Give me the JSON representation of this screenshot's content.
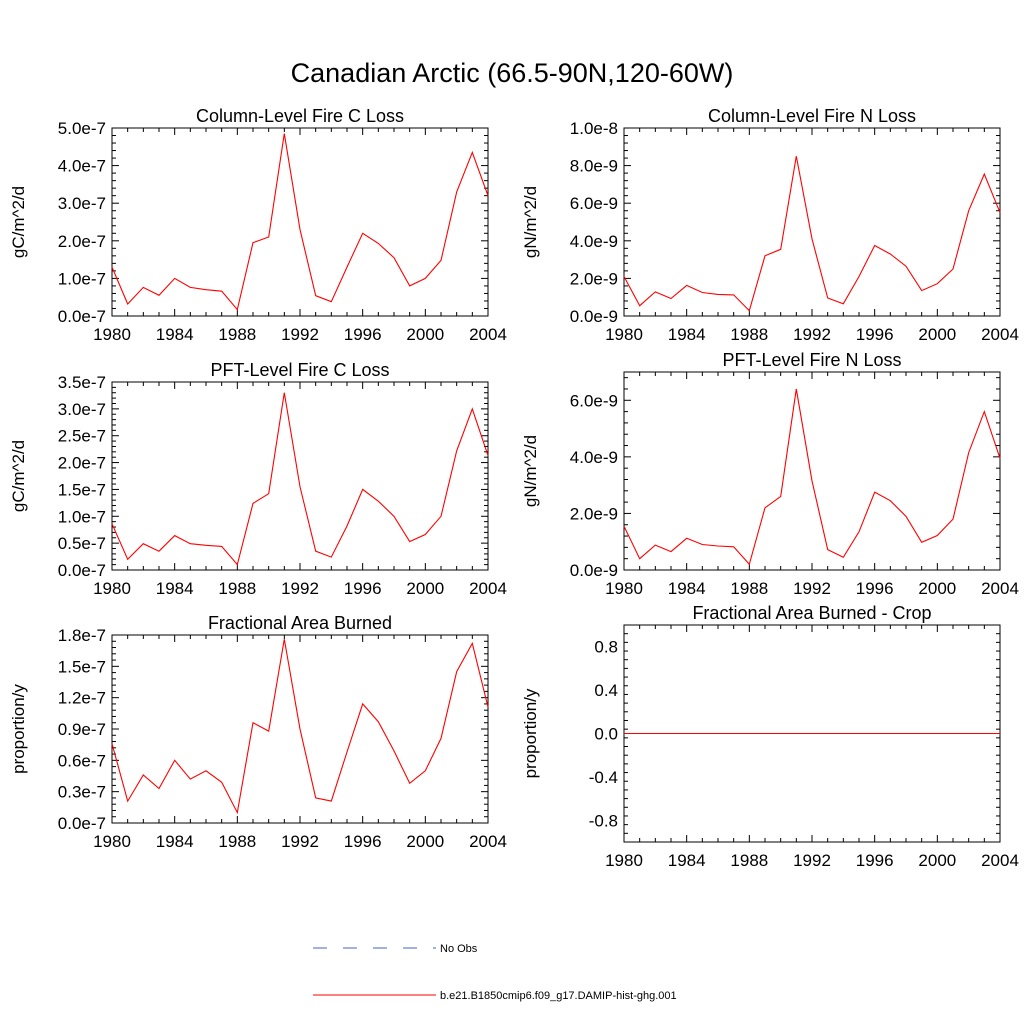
{
  "figure": {
    "title": "Canadian Arctic (66.5-90N,120-60W)"
  },
  "legend": [
    {
      "label": "No Obs",
      "color": "#4a5fc9",
      "dash": true
    },
    {
      "label": "b.e21.B1850cmip6.f09_g17.DAMIP-hist-ghg.001",
      "color": "#ff0000",
      "dash": false
    }
  ],
  "chart_data": [
    {
      "type": "line",
      "title": "Column-Level Fire C Loss",
      "ylabel": "gC/m^2/d",
      "xlim": [
        1980,
        2004
      ],
      "ylim": [
        0,
        5e-07
      ],
      "xticks": [
        1980,
        1984,
        1988,
        1992,
        1996,
        2000,
        2004
      ],
      "yticks": [
        0,
        1e-07,
        2e-07,
        3e-07,
        4e-07,
        5e-07
      ],
      "ytick_labels": [
        "0.0e-7",
        "1.0e-7",
        "2.0e-7",
        "3.0e-7",
        "4.0e-7",
        "5.0e-7"
      ],
      "x": [
        1980,
        1981,
        1982,
        1983,
        1984,
        1985,
        1986,
        1987,
        1988,
        1989,
        1990,
        1991,
        1992,
        1993,
        1994,
        1995,
        1996,
        1997,
        1998,
        1999,
        2000,
        2001,
        2002,
        2003,
        2004
      ],
      "series": [
        {
          "color": "#ff0000",
          "values": [
            1.3e-07,
            3.2e-08,
            7.6e-08,
            5.5e-08,
            1e-07,
            7.6e-08,
            7e-08,
            6.6e-08,
            1.7e-08,
            1.95e-07,
            2.1e-07,
            4.85e-07,
            2.3e-07,
            5.4e-08,
            3.8e-08,
            1.3e-07,
            2.2e-07,
            1.93e-07,
            1.55e-07,
            8e-08,
            1e-07,
            1.48e-07,
            3.3e-07,
            4.35e-07,
            3.2e-07
          ]
        }
      ]
    },
    {
      "type": "line",
      "title": "Column-Level Fire N Loss",
      "ylabel": "gN/m^2/d",
      "xlim": [
        1980,
        2004
      ],
      "ylim": [
        0,
        1e-08
      ],
      "xticks": [
        1980,
        1984,
        1988,
        1992,
        1996,
        2000,
        2004
      ],
      "yticks": [
        0,
        2e-09,
        4e-09,
        6e-09,
        8e-09,
        1e-08
      ],
      "ytick_labels": [
        "0.0e-9",
        "2.0e-9",
        "4.0e-9",
        "6.0e-9",
        "8.0e-9",
        "1.0e-8"
      ],
      "x": [
        1980,
        1981,
        1982,
        1983,
        1984,
        1985,
        1986,
        1987,
        1988,
        1989,
        1990,
        1991,
        1992,
        1993,
        1994,
        1995,
        1996,
        1997,
        1998,
        1999,
        2000,
        2001,
        2002,
        2003,
        2004
      ],
      "series": [
        {
          "color": "#ff0000",
          "values": [
            2.1e-09,
            5.5e-10,
            1.28e-09,
            9.3e-10,
            1.63e-09,
            1.25e-09,
            1.15e-09,
            1.12e-09,
            2.8e-10,
            3.2e-09,
            3.55e-09,
            8.5e-09,
            4.1e-09,
            9.6e-10,
            6.5e-10,
            2.1e-09,
            3.75e-09,
            3.3e-09,
            2.65e-09,
            1.35e-09,
            1.72e-09,
            2.5e-09,
            5.6e-09,
            7.55e-09,
            5.5e-09
          ]
        }
      ]
    },
    {
      "type": "line",
      "title": "PFT-Level Fire C Loss",
      "ylabel": "gC/m^2/d",
      "xlim": [
        1980,
        2004
      ],
      "ylim": [
        0,
        3.5e-07
      ],
      "xticks": [
        1980,
        1984,
        1988,
        1992,
        1996,
        2000,
        2004
      ],
      "yticks": [
        0,
        5e-08,
        1e-07,
        1.5e-07,
        2e-07,
        2.5e-07,
        3e-07,
        3.5e-07
      ],
      "ytick_labels": [
        "0.0e-7",
        "0.5e-7",
        "1.0e-7",
        "1.5e-7",
        "2.0e-7",
        "2.5e-7",
        "3.0e-7",
        "3.5e-7"
      ],
      "x": [
        1980,
        1981,
        1982,
        1983,
        1984,
        1985,
        1986,
        1987,
        1988,
        1989,
        1990,
        1991,
        1992,
        1993,
        1994,
        1995,
        1996,
        1997,
        1998,
        1999,
        2000,
        2001,
        2002,
        2003,
        2004
      ],
      "series": [
        {
          "color": "#ff0000",
          "values": [
            8.6e-08,
            2e-08,
            4.9e-08,
            3.5e-08,
            6.4e-08,
            4.9e-08,
            4.6e-08,
            4.4e-08,
            1e-08,
            1.24e-07,
            1.42e-07,
            3.3e-07,
            1.55e-07,
            3.5e-08,
            2.4e-08,
            8.2e-08,
            1.5e-07,
            1.28e-07,
            1e-07,
            5.3e-08,
            6.6e-08,
            1e-07,
            2.22e-07,
            3e-07,
            2.13e-07
          ]
        }
      ]
    },
    {
      "type": "line",
      "title": "PFT-Level Fire N Loss",
      "ylabel": "gN/m^2/d",
      "xlim": [
        1980,
        2004
      ],
      "ylim": [
        0,
        7e-09
      ],
      "xticks": [
        1980,
        1984,
        1988,
        1992,
        1996,
        2000,
        2004
      ],
      "yticks": [
        0,
        2e-09,
        4e-09,
        6e-09
      ],
      "ytick_labels": [
        "0.0e-9",
        "2.0e-9",
        "4.0e-9",
        "6.0e-9"
      ],
      "x": [
        1980,
        1981,
        1982,
        1983,
        1984,
        1985,
        1986,
        1987,
        1988,
        1989,
        1990,
        1991,
        1992,
        1993,
        1994,
        1995,
        1996,
        1997,
        1998,
        1999,
        2000,
        2001,
        2002,
        2003,
        2004
      ],
      "series": [
        {
          "color": "#ff0000",
          "values": [
            1.55e-09,
            4e-10,
            8.8e-10,
            6.5e-10,
            1.12e-09,
            9e-10,
            8.5e-10,
            8.2e-10,
            2e-10,
            2.2e-09,
            2.6e-09,
            6.4e-09,
            3.15e-09,
            7.2e-10,
            4.5e-10,
            1.35e-09,
            2.75e-09,
            2.45e-09,
            1.9e-09,
            9.8e-10,
            1.22e-09,
            1.8e-09,
            4.15e-09,
            5.6e-09,
            3.95e-09
          ]
        }
      ]
    },
    {
      "type": "line",
      "title": "Fractional Area Burned",
      "ylabel": "proportion/y",
      "xlim": [
        1980,
        2004
      ],
      "ylim": [
        0,
        1.8e-07
      ],
      "xticks": [
        1980,
        1984,
        1988,
        1992,
        1996,
        2000,
        2004
      ],
      "yticks": [
        0,
        3e-08,
        6e-08,
        9e-08,
        1.2e-07,
        1.5e-07,
        1.8e-07
      ],
      "ytick_labels": [
        "0.0e-7",
        "0.3e-7",
        "0.6e-7",
        "0.9e-7",
        "1.2e-7",
        "1.5e-7",
        "1.8e-7"
      ],
      "x": [
        1980,
        1981,
        1982,
        1983,
        1984,
        1985,
        1986,
        1987,
        1988,
        1989,
        1990,
        1991,
        1992,
        1993,
        1994,
        1995,
        1996,
        1997,
        1998,
        1999,
        2000,
        2001,
        2002,
        2003,
        2004
      ],
      "series": [
        {
          "color": "#ff0000",
          "values": [
            7.6e-08,
            2.1e-08,
            4.6e-08,
            3.3e-08,
            6e-08,
            4.2e-08,
            5e-08,
            3.9e-08,
            1e-08,
            9.6e-08,
            8.8e-08,
            1.76e-07,
            9e-08,
            2.4e-08,
            2.1e-08,
            6.8e-08,
            1.14e-07,
            9.7e-08,
            6.9e-08,
            3.8e-08,
            5e-08,
            8.1e-08,
            1.45e-07,
            1.72e-07,
            1.11e-07
          ]
        }
      ]
    },
    {
      "type": "line",
      "title": "Fractional Area Burned - Crop",
      "ylabel": "proportion/y",
      "xlim": [
        1980,
        2004
      ],
      "ylim": [
        -1.0,
        1.0
      ],
      "xticks": [
        1980,
        1984,
        1988,
        1992,
        1996,
        2000,
        2004
      ],
      "yticks": [
        -0.8,
        -0.4,
        0.0,
        0.4,
        0.8
      ],
      "ytick_labels": [
        "-0.8",
        "-0.4",
        "0.0",
        "0.4",
        "0.8"
      ],
      "x": [
        1980,
        2004
      ],
      "series": [
        {
          "color": "#ff0000",
          "values": [
            0,
            0
          ]
        }
      ]
    }
  ]
}
